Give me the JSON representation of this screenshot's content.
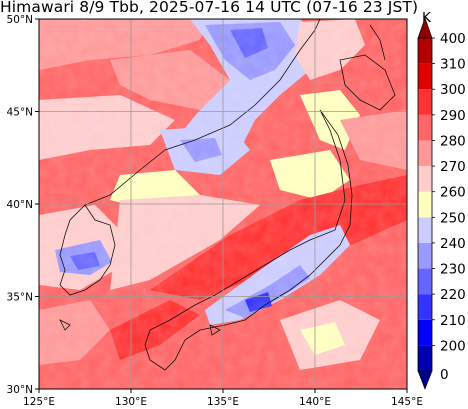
{
  "title": "Himawari 8/9 Tbb, 2025-07-16 14 UTC (07-16 23 JST)",
  "map": {
    "lon_range": [
      125,
      145
    ],
    "lat_range": [
      30,
      50
    ],
    "gridlines": true,
    "x_ticks": [
      {
        "value": 125,
        "label": "125°E"
      },
      {
        "value": 130,
        "label": "130°E"
      },
      {
        "value": 135,
        "label": "135°E"
      },
      {
        "value": 140,
        "label": "140°E"
      },
      {
        "value": 145,
        "label": "145°E"
      }
    ],
    "y_ticks": [
      {
        "value": 30,
        "label": "30°N"
      },
      {
        "value": 35,
        "label": "35°N"
      },
      {
        "value": 40,
        "label": "40°N"
      },
      {
        "value": 45,
        "label": "45°N"
      },
      {
        "value": 50,
        "label": "50°N"
      }
    ]
  },
  "colorbar": {
    "unit": "K",
    "extend": "both",
    "levels": [
      {
        "value": 200,
        "label": "200",
        "color": "#0000b3"
      },
      {
        "value": 210,
        "label": "210",
        "color": "#0000ff"
      },
      {
        "value": 220,
        "label": "220",
        "color": "#3333ff"
      },
      {
        "value": 230,
        "label": "230",
        "color": "#6666ff"
      },
      {
        "value": 240,
        "label": "240",
        "color": "#9999ff"
      },
      {
        "value": 250,
        "label": "250",
        "color": "#ccccff"
      },
      {
        "value": 260,
        "label": "260",
        "color": "#ffffc0"
      },
      {
        "value": 270,
        "label": "270",
        "color": "#ffcccc"
      },
      {
        "value": 280,
        "label": "280",
        "color": "#ff9999"
      },
      {
        "value": 290,
        "label": "290",
        "color": "#ff6666"
      },
      {
        "value": 300,
        "label": "300",
        "color": "#ff3333"
      },
      {
        "value": 310,
        "label": "310",
        "color": "#e00000"
      },
      {
        "value": 400,
        "label": "400",
        "color": "#b30000"
      }
    ],
    "low_label": "0",
    "under_color": "#00008b",
    "over_color": "#8b0000"
  }
}
